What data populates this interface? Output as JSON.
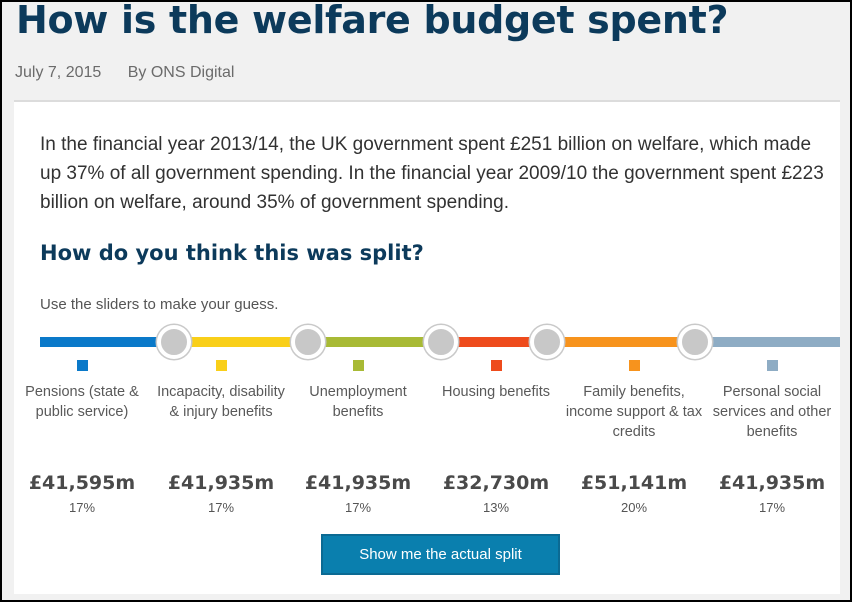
{
  "header": {
    "title": "How is the welfare budget spent?",
    "date": "July 7, 2015",
    "author": "By ONS Digital"
  },
  "intro": "In the financial year 2013/14, the UK government spent £251 billion on welfare, which made up 37% of all government spending. In the financial year 2009/10 the government spent £223 billion on welfare, around 35% of government spending.",
  "question": {
    "heading": "How do you think this was split?",
    "hint": "Use the sliders to make your guess."
  },
  "categories": [
    {
      "label": "Pensions (state & public service)",
      "amount": "£41,595m",
      "percent": "17%",
      "share": 17,
      "color": "#0a79c9"
    },
    {
      "label": "Incapacity, disability & injury benefits",
      "amount": "£41,935m",
      "percent": "17%",
      "share": 17,
      "color": "#f9cf19"
    },
    {
      "label": "Unemployment benefits",
      "amount": "£41,935m",
      "percent": "17%",
      "share": 17,
      "color": "#a8ba35"
    },
    {
      "label": "Housing benefits",
      "amount": "£32,730m",
      "percent": "13%",
      "share": 13,
      "color": "#ee4b1c"
    },
    {
      "label": "Family benefits, income support & tax credits",
      "amount": "£51,141m",
      "percent": "20%",
      "share": 20,
      "color": "#f7931d"
    },
    {
      "label": "Personal social services and other benefits",
      "amount": "£41,935m",
      "percent": "17%",
      "share": 17,
      "color": "#8eacc4"
    }
  ],
  "slider_positions": [
    0.1674,
    0.3345,
    0.5016,
    0.6336,
    0.8186
  ],
  "button": {
    "label": "Show me the actual split"
  },
  "colors": {
    "heading": "#0c3a5b",
    "button": "#0a7fae"
  }
}
